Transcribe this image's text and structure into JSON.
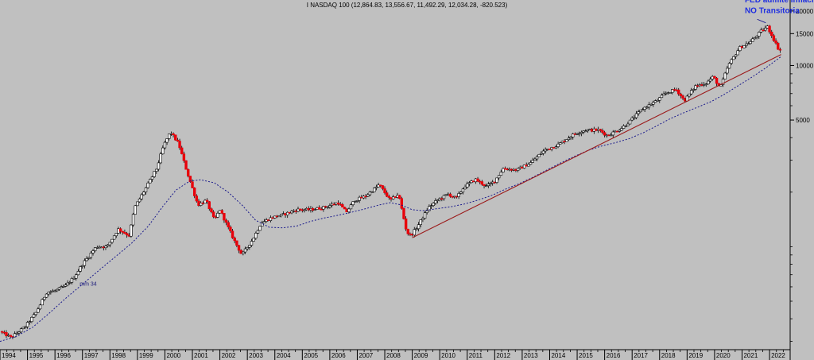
{
  "chart_data": {
    "type": "candlestick",
    "title": "I NASDAQ 100 (12,864.83, 13,556.67, 11,492.29, 12,034.28, -820.523)",
    "y_scale": "log",
    "y_ticks": [
      5000,
      10000,
      15000,
      20000
    ],
    "y_tick_labels": [
      "5000",
      "10000",
      "15000",
      "20000"
    ],
    "ylim": [
      270,
      23000
    ],
    "x_tick_labels": [
      "1994",
      "1995",
      "1996",
      "1997",
      "1998",
      "1999",
      "2000",
      "2001",
      "2002",
      "2003",
      "2004",
      "2005",
      "2006",
      "2007",
      "2008",
      "2009",
      "2010",
      "2011",
      "2012",
      "2013",
      "2014",
      "2015",
      "2016",
      "2017",
      "2018",
      "2019",
      "2020",
      "2021",
      "2022"
    ],
    "xlim": [
      1994.0,
      2022.75
    ],
    "colors": {
      "background": "#c0c0c0",
      "up_candle": "#ffffff",
      "down_candle": "#e8000b",
      "outline": "#000000",
      "moving_average": "#1a1a8c",
      "trendline": "#9b1b1b",
      "annotation": "#1f2fe0"
    },
    "price_path": [
      [
        1994.0,
        340
      ],
      [
        1994.4,
        315
      ],
      [
        1994.9,
        360
      ],
      [
        1995.3,
        430
      ],
      [
        1995.7,
        560
      ],
      [
        1996.0,
        570
      ],
      [
        1996.4,
        610
      ],
      [
        1996.7,
        680
      ],
      [
        1997.0,
        800
      ],
      [
        1997.5,
        1000
      ],
      [
        1997.9,
        1000
      ],
      [
        1998.3,
        1250
      ],
      [
        1998.7,
        1150
      ],
      [
        1998.9,
        1650
      ],
      [
        1999.3,
        2100
      ],
      [
        1999.7,
        2700
      ],
      [
        1999.95,
        3600
      ],
      [
        2000.2,
        4300
      ],
      [
        2000.5,
        3700
      ],
      [
        2000.8,
        2600
      ],
      [
        2001.2,
        1700
      ],
      [
        2001.5,
        1800
      ],
      [
        2001.8,
        1400
      ],
      [
        2002.0,
        1600
      ],
      [
        2002.5,
        1100
      ],
      [
        2002.8,
        900
      ],
      [
        2003.2,
        1100
      ],
      [
        2003.5,
        1350
      ],
      [
        2003.9,
        1450
      ],
      [
        2004.3,
        1500
      ],
      [
        2004.8,
        1600
      ],
      [
        2005.3,
        1600
      ],
      [
        2005.8,
        1650
      ],
      [
        2006.3,
        1750
      ],
      [
        2006.6,
        1550
      ],
      [
        2006.9,
        1800
      ],
      [
        2007.3,
        1900
      ],
      [
        2007.8,
        2200
      ],
      [
        2008.2,
        1800
      ],
      [
        2008.5,
        1950
      ],
      [
        2008.8,
        1200
      ],
      [
        2008.95,
        1150
      ],
      [
        2009.2,
        1300
      ],
      [
        2009.6,
        1650
      ],
      [
        2009.9,
        1800
      ],
      [
        2010.3,
        1950
      ],
      [
        2010.6,
        1850
      ],
      [
        2010.9,
        2150
      ],
      [
        2011.3,
        2350
      ],
      [
        2011.7,
        2150
      ],
      [
        2012.0,
        2300
      ],
      [
        2012.3,
        2700
      ],
      [
        2012.8,
        2650
      ],
      [
        2013.3,
        2900
      ],
      [
        2013.8,
        3400
      ],
      [
        2014.3,
        3650
      ],
      [
        2014.9,
        4200
      ],
      [
        2015.3,
        4400
      ],
      [
        2015.8,
        4400
      ],
      [
        2016.1,
        4100
      ],
      [
        2016.6,
        4500
      ],
      [
        2016.9,
        4900
      ],
      [
        2017.4,
        5800
      ],
      [
        2017.9,
        6400
      ],
      [
        2018.2,
        7000
      ],
      [
        2018.6,
        7400
      ],
      [
        2018.9,
        6400
      ],
      [
        2019.3,
        7700
      ],
      [
        2019.7,
        8000
      ],
      [
        2019.95,
        8700
      ],
      [
        2020.2,
        7500
      ],
      [
        2020.5,
        10000
      ],
      [
        2020.9,
        12500
      ],
      [
        2021.3,
        13500
      ],
      [
        2021.7,
        15500
      ],
      [
        2021.92,
        16400
      ],
      [
        2022.1,
        14500
      ],
      [
        2022.3,
        12500
      ],
      [
        2022.42,
        12034
      ]
    ],
    "moving_average_path": [
      [
        1994.0,
        300
      ],
      [
        1994.6,
        320
      ],
      [
        1995.2,
        360
      ],
      [
        1995.8,
        430
      ],
      [
        1996.4,
        520
      ],
      [
        1997.0,
        620
      ],
      [
        1997.6,
        740
      ],
      [
        1998.2,
        880
      ],
      [
        1998.8,
        1050
      ],
      [
        1999.4,
        1300
      ],
      [
        1999.9,
        1650
      ],
      [
        2000.4,
        2050
      ],
      [
        2000.9,
        2300
      ],
      [
        2001.3,
        2340
      ],
      [
        2001.8,
        2250
      ],
      [
        2002.3,
        2000
      ],
      [
        2002.8,
        1700
      ],
      [
        2003.3,
        1400
      ],
      [
        2003.8,
        1280
      ],
      [
        2004.3,
        1270
      ],
      [
        2004.8,
        1300
      ],
      [
        2005.3,
        1380
      ],
      [
        2005.8,
        1440
      ],
      [
        2006.3,
        1490
      ],
      [
        2006.8,
        1550
      ],
      [
        2007.3,
        1620
      ],
      [
        2007.8,
        1700
      ],
      [
        2008.2,
        1750
      ],
      [
        2008.6,
        1700
      ],
      [
        2009.0,
        1600
      ],
      [
        2009.4,
        1580
      ],
      [
        2009.9,
        1620
      ],
      [
        2010.4,
        1660
      ],
      [
        2010.9,
        1720
      ],
      [
        2011.4,
        1810
      ],
      [
        2011.9,
        1920
      ],
      [
        2012.4,
        2080
      ],
      [
        2012.9,
        2230
      ],
      [
        2013.4,
        2420
      ],
      [
        2013.9,
        2650
      ],
      [
        2014.4,
        2900
      ],
      [
        2014.9,
        3150
      ],
      [
        2015.4,
        3400
      ],
      [
        2015.9,
        3600
      ],
      [
        2016.4,
        3750
      ],
      [
        2016.9,
        3950
      ],
      [
        2017.4,
        4250
      ],
      [
        2017.9,
        4650
      ],
      [
        2018.4,
        5100
      ],
      [
        2018.9,
        5500
      ],
      [
        2019.4,
        5900
      ],
      [
        2019.9,
        6350
      ],
      [
        2020.4,
        7000
      ],
      [
        2020.9,
        7800
      ],
      [
        2021.4,
        8700
      ],
      [
        2021.9,
        9800
      ],
      [
        2022.42,
        11200
      ]
    ],
    "trendline": [
      [
        2009.0,
        1120
      ],
      [
        2022.42,
        11500
      ]
    ],
    "annotations": [
      {
        "text": "FED admite Inflación",
        "x": 2021.1,
        "y": 22300,
        "kind": "header"
      },
      {
        "text": "NO Transitoria",
        "x": 2021.1,
        "y": 19500,
        "kind": "header"
      },
      {
        "text": "mm 34",
        "x": 1996.9,
        "y": 610,
        "kind": "small"
      }
    ]
  }
}
